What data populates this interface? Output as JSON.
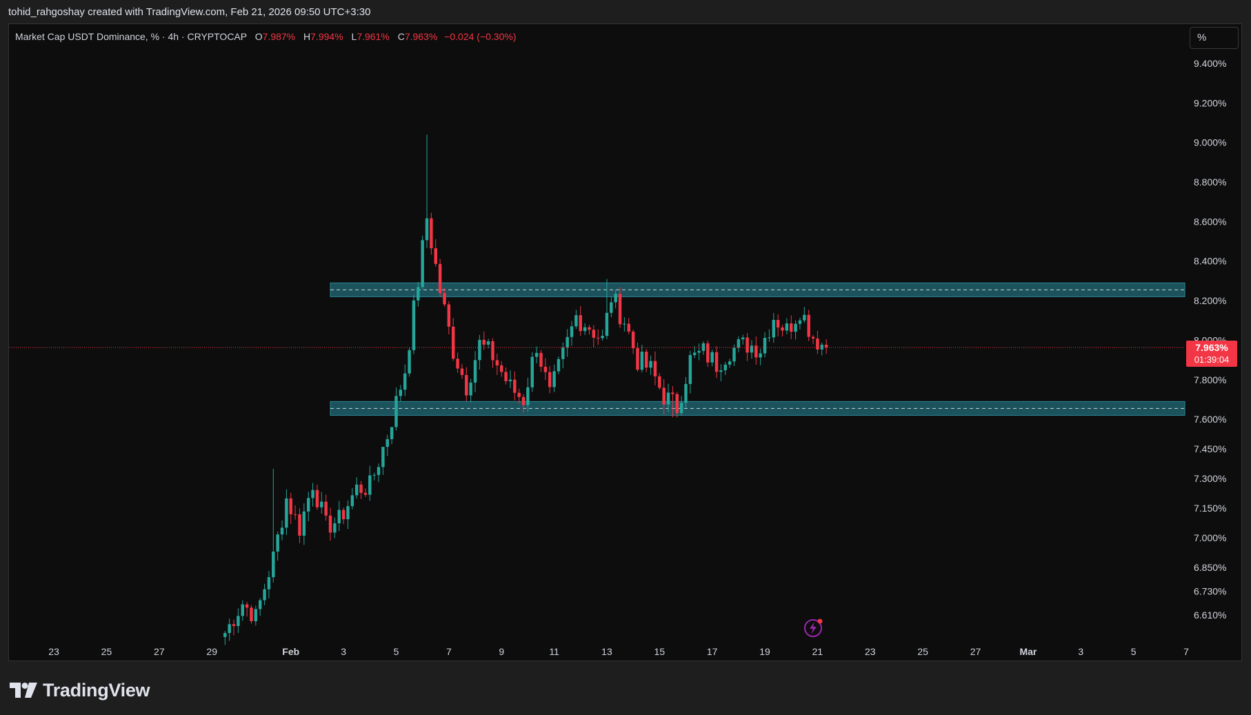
{
  "header": {
    "caption": "tohid_rahgoshay created with TradingView.com, Feb 21, 2026 09:50 UTC+3:30"
  },
  "legend": {
    "symbol_text": "Market Cap USDT Dominance, % · 4h · CRYPTOCAP",
    "open_label": "O",
    "open": "7.987%",
    "high_label": "H",
    "high": "7.994%",
    "low_label": "L",
    "low": "7.961%",
    "close_label": "C",
    "close": "7.963%",
    "change": "−0.024 (−0.30%)"
  },
  "toolbar": {
    "scale_button_label": "%"
  },
  "price_tag": {
    "price": "7.963%",
    "countdown": "01:39:04"
  },
  "branding": {
    "logo_text": "TradingView"
  },
  "colors": {
    "up": "#26a69a",
    "down": "#f23645",
    "zone_fill": "#1f5f6b",
    "background": "#0d0d0d"
  },
  "chart_data": {
    "type": "candlestick",
    "timeframe": "4h",
    "series_name": "Market Cap USDT Dominance",
    "x_range": [
      "2026-01-22",
      "2026-03-07"
    ],
    "y_range": [
      6.49,
      9.55
    ],
    "y_ticks": [
      {
        "value": 9.4,
        "label": "9.400%"
      },
      {
        "value": 9.2,
        "label": "9.200%"
      },
      {
        "value": 9.0,
        "label": "9.000%"
      },
      {
        "value": 8.8,
        "label": "8.800%"
      },
      {
        "value": 8.6,
        "label": "8.600%"
      },
      {
        "value": 8.4,
        "label": "8.400%"
      },
      {
        "value": 8.2,
        "label": "8.200%"
      },
      {
        "value": 8.0,
        "label": "8.000%"
      },
      {
        "value": 7.8,
        "label": "7.800%"
      },
      {
        "value": 7.6,
        "label": "7.600%"
      },
      {
        "value": 7.45,
        "label": "7.450%"
      },
      {
        "value": 7.3,
        "label": "7.300%"
      },
      {
        "value": 7.15,
        "label": "7.150%"
      },
      {
        "value": 7.0,
        "label": "7.000%"
      },
      {
        "value": 6.85,
        "label": "6.850%"
      },
      {
        "value": 6.73,
        "label": "6.730%"
      },
      {
        "value": 6.61,
        "label": "6.610%"
      }
    ],
    "x_ticks": [
      {
        "date": "2026-01-23",
        "label": "23"
      },
      {
        "date": "2026-01-25",
        "label": "25"
      },
      {
        "date": "2026-01-27",
        "label": "27"
      },
      {
        "date": "2026-01-29",
        "label": "29"
      },
      {
        "date": "2026-02-01",
        "label": "Feb"
      },
      {
        "date": "2026-02-03",
        "label": "3"
      },
      {
        "date": "2026-02-05",
        "label": "5"
      },
      {
        "date": "2026-02-07",
        "label": "7"
      },
      {
        "date": "2026-02-09",
        "label": "9"
      },
      {
        "date": "2026-02-11",
        "label": "11"
      },
      {
        "date": "2026-02-13",
        "label": "13"
      },
      {
        "date": "2026-02-15",
        "label": "15"
      },
      {
        "date": "2026-02-17",
        "label": "17"
      },
      {
        "date": "2026-02-19",
        "label": "19"
      },
      {
        "date": "2026-02-21",
        "label": "21"
      },
      {
        "date": "2026-02-23",
        "label": "23"
      },
      {
        "date": "2026-02-25",
        "label": "25"
      },
      {
        "date": "2026-02-27",
        "label": "27"
      },
      {
        "date": "2026-03-01",
        "label": "Mar"
      },
      {
        "date": "2026-03-03",
        "label": "3"
      },
      {
        "date": "2026-03-05",
        "label": "5"
      },
      {
        "date": "2026-03-07",
        "label": "7"
      }
    ],
    "current_price": 7.963,
    "zones": [
      {
        "from": 8.22,
        "to": 8.29,
        "start": "2026-02-02 12:00",
        "mid": 8.255
      },
      {
        "from": 7.62,
        "to": 7.69,
        "start": "2026-02-02 12:00",
        "mid": 7.655
      }
    ],
    "key_points": [
      [
        "2026-01-29 12:00",
        6.52
      ],
      [
        "2026-01-30 04:00",
        6.67
      ],
      [
        "2026-01-30 16:00",
        6.6
      ],
      [
        "2026-01-31 08:00",
        6.9
      ],
      [
        "2026-01-31 20:00",
        7.2
      ],
      [
        "2026-02-01 08:00",
        7.05
      ],
      [
        "2026-02-01 20:00",
        7.28
      ],
      [
        "2026-02-02 08:00",
        7.06
      ],
      [
        "2026-02-02 20:00",
        7.09
      ],
      [
        "2026-02-03 12:00",
        7.25
      ],
      [
        "2026-02-04 00:00",
        7.26
      ],
      [
        "2026-02-04 16:00",
        7.52
      ],
      [
        "2026-02-05 08:00",
        7.85
      ],
      [
        "2026-02-05 20:00",
        8.3
      ],
      [
        "2026-02-06 04:00",
        8.62
      ],
      [
        "2026-02-06 16:00",
        8.25
      ],
      [
        "2026-02-07 04:00",
        7.95
      ],
      [
        "2026-02-07 16:00",
        7.77
      ],
      [
        "2026-02-08 04:00",
        7.98
      ],
      [
        "2026-02-08 16:00",
        7.92
      ],
      [
        "2026-02-09 08:00",
        7.76
      ],
      [
        "2026-02-09 20:00",
        7.7
      ],
      [
        "2026-02-10 08:00",
        7.98
      ],
      [
        "2026-02-10 20:00",
        7.72
      ],
      [
        "2026-02-11 08:00",
        7.92
      ],
      [
        "2026-02-11 20:00",
        8.12
      ],
      [
        "2026-02-12 08:00",
        8.07
      ],
      [
        "2026-02-12 20:00",
        8.0
      ],
      [
        "2026-02-13 04:00",
        8.22
      ],
      [
        "2026-02-13 16:00",
        8.1
      ],
      [
        "2026-02-14 04:00",
        7.9
      ],
      [
        "2026-02-14 16:00",
        7.85
      ],
      [
        "2026-02-15 04:00",
        7.72
      ],
      [
        "2026-02-15 16:00",
        7.66
      ],
      [
        "2026-02-16 04:00",
        7.9
      ],
      [
        "2026-02-16 16:00",
        7.94
      ],
      [
        "2026-02-17 04:00",
        7.88
      ],
      [
        "2026-02-17 16:00",
        7.95
      ],
      [
        "2026-02-18 08:00",
        7.98
      ],
      [
        "2026-02-18 20:00",
        7.96
      ],
      [
        "2026-02-19 08:00",
        8.12
      ],
      [
        "2026-02-19 20:00",
        8.05
      ],
      [
        "2026-02-20 08:00",
        8.16
      ],
      [
        "2026-02-20 20:00",
        8.02
      ],
      [
        "2026-02-21 04:00",
        7.98
      ],
      [
        "2026-02-21 08:00",
        7.963
      ]
    ],
    "spikes": [
      {
        "time": "2026-02-06 04:00",
        "high": 9.04
      },
      {
        "time": "2026-01-31 08:00",
        "high": 7.35
      },
      {
        "time": "2026-02-04 12:00",
        "high": 7.4
      },
      {
        "time": "2026-02-04 20:00",
        "high": 7.55
      },
      {
        "time": "2026-02-13 00:00",
        "high": 8.31
      },
      {
        "time": "2026-02-15 12:00",
        "low": 7.61
      }
    ]
  }
}
